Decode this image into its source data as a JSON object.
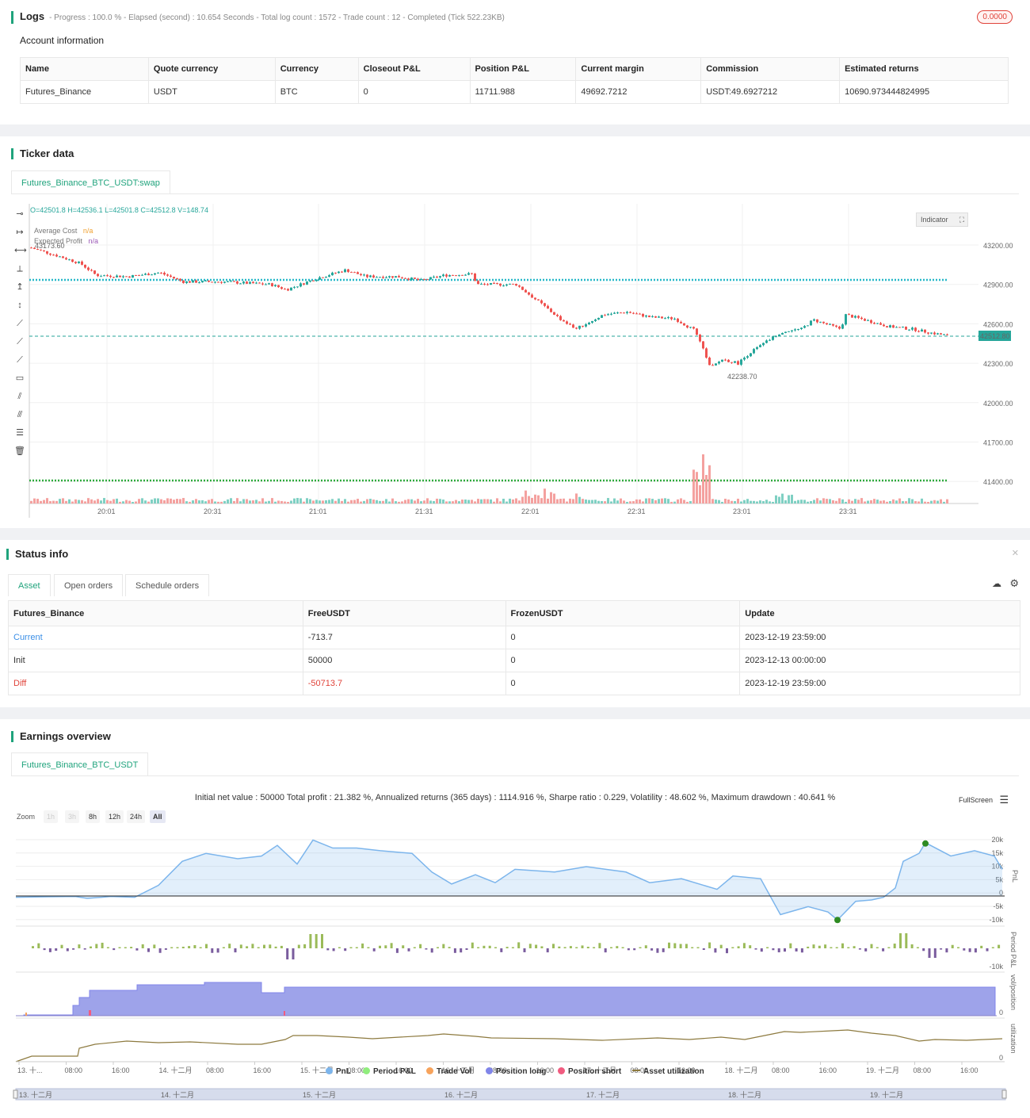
{
  "logs": {
    "title": "Logs",
    "summary": "- Progress : 100.0 % - Elapsed (second) : 10.654  Seconds - Total log count : 1572 - Trade count : 12 - Completed (Tick 522.23KB)",
    "badge": "0.0000",
    "account_title": "Account information",
    "columns": [
      "Name",
      "Quote currency",
      "Currency",
      "Closeout P&L",
      "Position P&L",
      "Current margin",
      "Commission",
      "Estimated returns"
    ],
    "row": [
      "Futures_Binance",
      "USDT",
      "BTC",
      "0",
      "11711.988",
      "49692.7212",
      "USDT:49.6927212",
      "10690.973444824995"
    ]
  },
  "ticker": {
    "title": "Ticker data",
    "tab": "Futures_Binance_BTC_USDT:swap",
    "ohlc": "O=42501.8 H=42536.1 L=42501.8 C=42512.8 V=148.74",
    "legend": [
      {
        "label": "Average Cost",
        "value": "n/a"
      },
      {
        "label": "Expected Profit",
        "value": "n/a"
      }
    ],
    "indicator_btn": "Indicator",
    "last_price": "42512.80",
    "high_label": "43173.60",
    "low_label": "42238.70",
    "y_ticks": [
      "43200.00",
      "42900.00",
      "42600.00",
      "42300.00",
      "42000.00",
      "41700.00",
      "41400.00"
    ],
    "x_ticks": [
      "20:01",
      "20:31",
      "21:01",
      "21:31",
      "22:01",
      "22:31",
      "23:01",
      "23:31"
    ],
    "tool_icons": [
      "horizontal-line-icon",
      "horizontal-ray-icon",
      "horizontal-segment-icon",
      "vertical-line-icon",
      "vertical-ray-icon",
      "vertical-segment-icon",
      "trend-line-icon",
      "ray-line-icon",
      "segment-line-icon",
      "price-label-icon",
      "parallel-channel-icon",
      "fibonacci-icon",
      "grid-lines-icon",
      "trash-icon"
    ]
  },
  "status": {
    "title": "Status info",
    "tabs": [
      "Asset",
      "Open orders",
      "Schedule orders"
    ],
    "columns": [
      "Futures_Binance",
      "FreeUSDT",
      "FrozenUSDT",
      "Update"
    ],
    "rows": [
      [
        "Current",
        "-713.7",
        "0",
        "2023-12-19 23:59:00"
      ],
      [
        "Init",
        "50000",
        "0",
        "2023-12-13 00:00:00"
      ],
      [
        "Diff",
        "-50713.7",
        "0",
        "2023-12-19 23:59:00"
      ]
    ]
  },
  "earnings": {
    "title": "Earnings overview",
    "tab": "Futures_Binance_BTC_USDT",
    "summary": "Initial net value : 50000 Total profit : 21.382 %, Annualized returns (365 days) : 1114.916 %, Sharpe ratio : 0.229, Volatility : 48.602 %, Maximum drawdown : 40.641 %",
    "fullscreen": "FullScreen",
    "zoom_label": "Zoom",
    "zoom_buttons": [
      "1h",
      "3h",
      "8h",
      "12h",
      "24h",
      "All"
    ],
    "pnl_ticks": [
      "20k",
      "15k",
      "10k",
      "5k",
      "0",
      "-5k",
      "-10k"
    ],
    "pnl_axis": "PnL",
    "period_axis": "Period P&L",
    "period_tick": "-10k",
    "vol_axis": "vol/position",
    "vol_tick": "0",
    "util_axis": "utilization",
    "util_tick": "0",
    "x_ticks": [
      "13. 十...",
      "08:00",
      "16:00",
      "14. 十二月",
      "08:00",
      "16:00",
      "15. 十二月",
      "08:00",
      "16:00",
      "16. 十二月",
      "08:00",
      "16:00",
      "17. 十二月",
      "08:00",
      "16:00",
      "18. 十二月",
      "08:00",
      "16:00",
      "19. 十二月",
      "08:00",
      "16:00"
    ],
    "navigator_ticks": [
      "13. 十二月",
      "14. 十二月",
      "15. 十二月",
      "16. 十二月",
      "17. 十二月",
      "18. 十二月",
      "19. 十二月"
    ],
    "legend": [
      {
        "label": "PnL",
        "color": "#7cb5ec"
      },
      {
        "label": "Period P&L",
        "color": "#90ed7d"
      },
      {
        "label": "Trade Vol",
        "color": "#f7a35c"
      },
      {
        "label": "Position long",
        "color": "#8085e9"
      },
      {
        "label": "Position short",
        "color": "#f15c80"
      },
      {
        "label": "Asset utilization",
        "color": "#8d7a3f"
      }
    ]
  }
}
